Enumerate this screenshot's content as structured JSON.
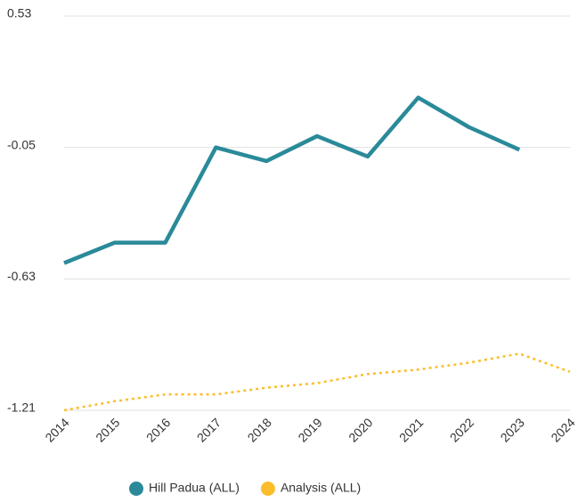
{
  "chart_data": {
    "type": "line",
    "categories": [
      "2014",
      "2015",
      "2016",
      "2017",
      "2018",
      "2019",
      "2020",
      "2021",
      "2022",
      "2023",
      "2024"
    ],
    "series": [
      {
        "name": "Hill Padua (ALL)",
        "color": "#2a8a99",
        "dash": false,
        "values": [
          -0.56,
          -0.47,
          -0.47,
          -0.05,
          -0.11,
          0.0,
          -0.09,
          0.17,
          0.04,
          -0.06,
          null
        ]
      },
      {
        "name": "Analysis (ALL)",
        "color": "#fbbd2c",
        "dash": true,
        "values": [
          -1.21,
          -1.17,
          -1.14,
          -1.14,
          -1.11,
          -1.09,
          -1.05,
          -1.03,
          -1.0,
          -0.96,
          -1.04
        ]
      }
    ],
    "ylim": [
      -1.21,
      0.53
    ],
    "yticks": [
      0.53,
      -0.05,
      -0.63,
      -1.21
    ],
    "grid": true,
    "legend": "bottom"
  }
}
